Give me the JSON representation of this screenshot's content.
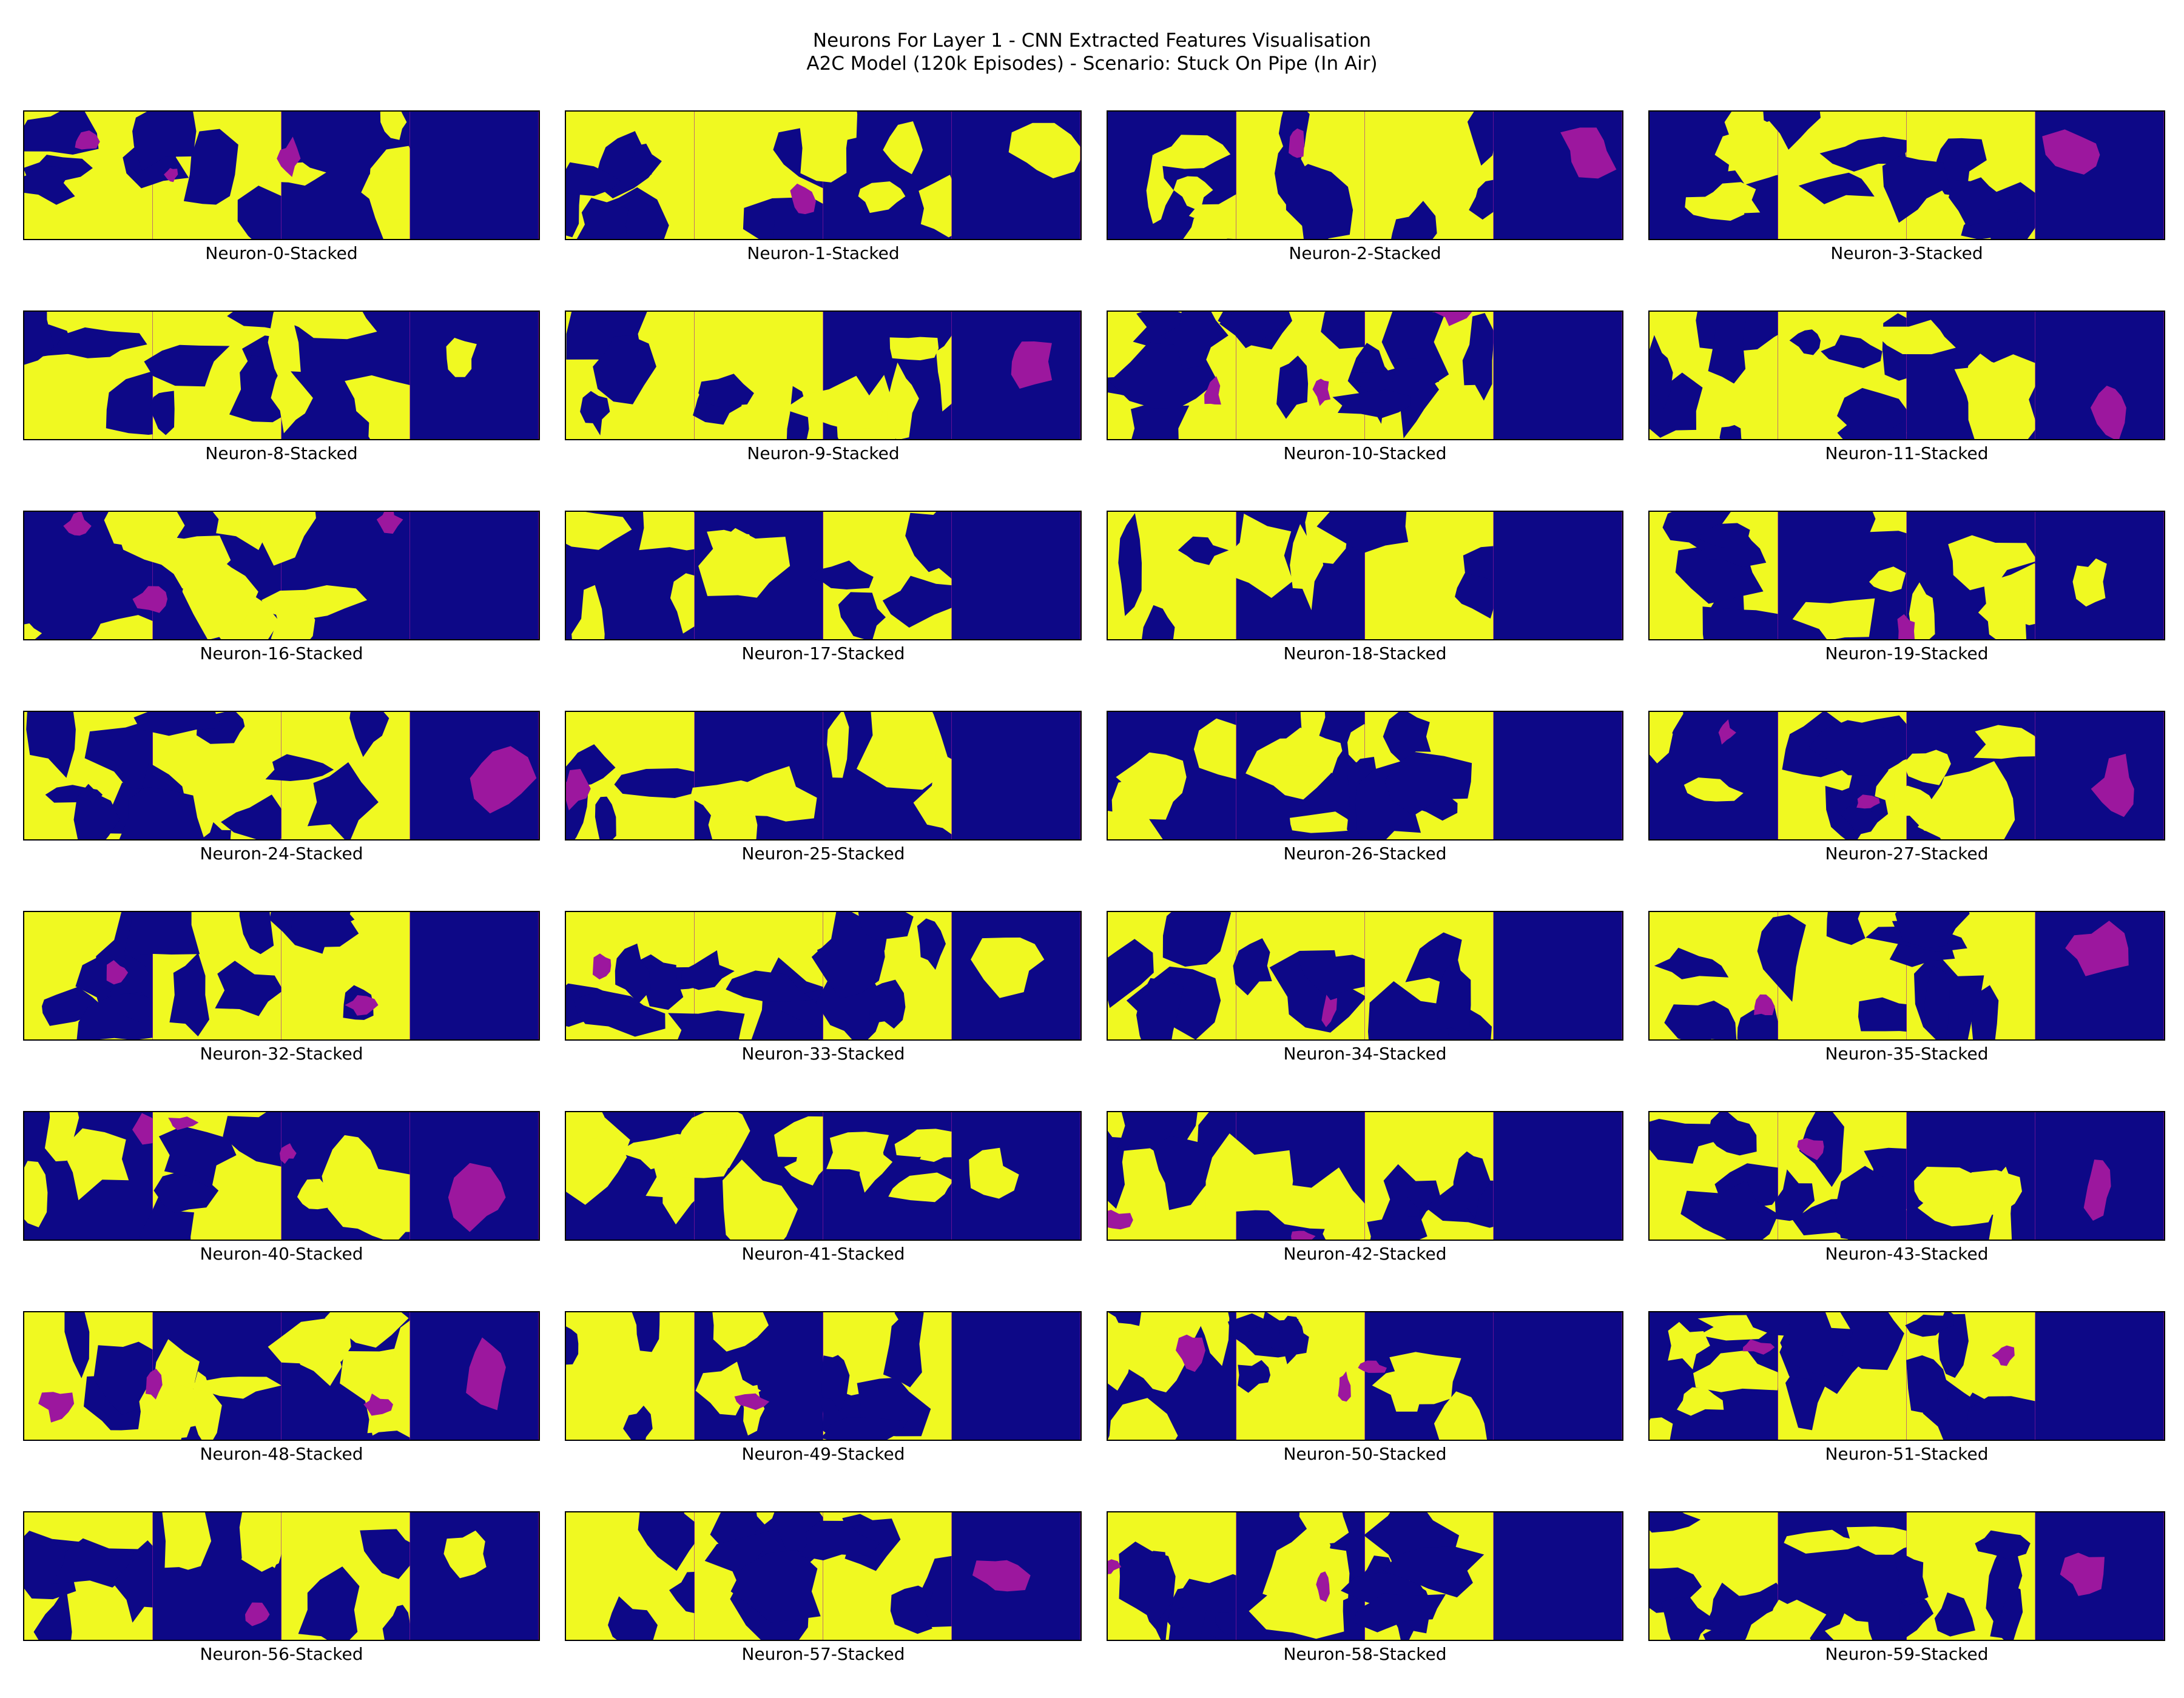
{
  "figure": {
    "title_line_1": "Neurons For Layer 1 - CNN Extracted Features Visualisation",
    "title_line_2": "A2C Model (120k Episodes) - Scenario: Stuck On Pipe (In Air)"
  },
  "colormap": {
    "name": "plasma",
    "low": "#0d0887",
    "mid": "#9c179e",
    "high": "#f0f921"
  },
  "panels": [
    {
      "label": "Neuron-0-Stacked"
    },
    {
      "label": "Neuron-1-Stacked"
    },
    {
      "label": "Neuron-2-Stacked"
    },
    {
      "label": "Neuron-3-Stacked"
    },
    {
      "label": "Neuron-8-Stacked"
    },
    {
      "label": "Neuron-9-Stacked"
    },
    {
      "label": "Neuron-10-Stacked"
    },
    {
      "label": "Neuron-11-Stacked"
    },
    {
      "label": "Neuron-16-Stacked"
    },
    {
      "label": "Neuron-17-Stacked"
    },
    {
      "label": "Neuron-18-Stacked"
    },
    {
      "label": "Neuron-19-Stacked"
    },
    {
      "label": "Neuron-24-Stacked"
    },
    {
      "label": "Neuron-25-Stacked"
    },
    {
      "label": "Neuron-26-Stacked"
    },
    {
      "label": "Neuron-27-Stacked"
    },
    {
      "label": "Neuron-32-Stacked"
    },
    {
      "label": "Neuron-33-Stacked"
    },
    {
      "label": "Neuron-34-Stacked"
    },
    {
      "label": "Neuron-35-Stacked"
    },
    {
      "label": "Neuron-40-Stacked"
    },
    {
      "label": "Neuron-41-Stacked"
    },
    {
      "label": "Neuron-42-Stacked"
    },
    {
      "label": "Neuron-43-Stacked"
    },
    {
      "label": "Neuron-48-Stacked"
    },
    {
      "label": "Neuron-49-Stacked"
    },
    {
      "label": "Neuron-50-Stacked"
    },
    {
      "label": "Neuron-51-Stacked"
    },
    {
      "label": "Neuron-56-Stacked"
    },
    {
      "label": "Neuron-57-Stacked"
    },
    {
      "label": "Neuron-58-Stacked"
    },
    {
      "label": "Neuron-59-Stacked"
    }
  ]
}
